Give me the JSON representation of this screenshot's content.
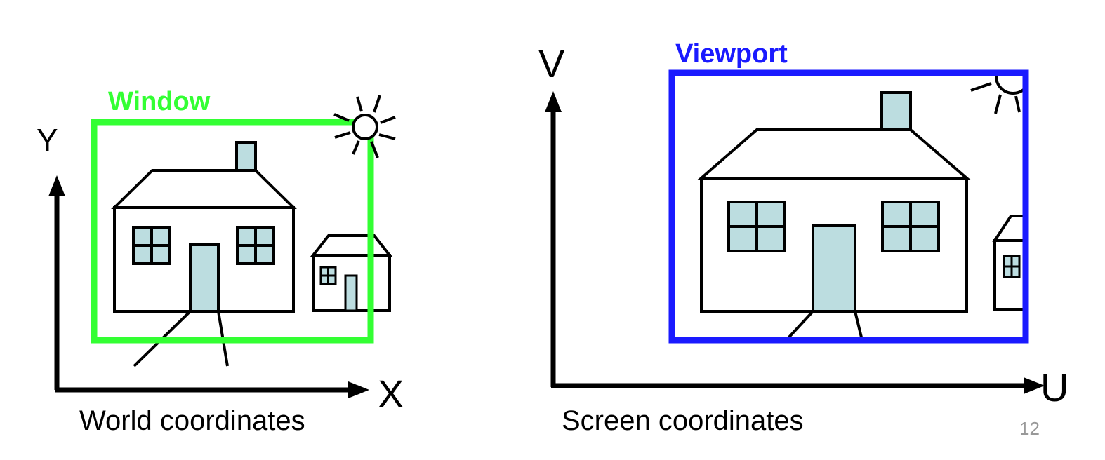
{
  "left_panel": {
    "window_label": "Window",
    "y_axis_label": "Y",
    "x_axis_label": "X",
    "caption": "World coordinates"
  },
  "right_panel": {
    "viewport_label": "Viewport",
    "v_axis_label": "V",
    "u_axis_label": "U",
    "caption": "Screen coordinates"
  },
  "page_number": "12",
  "colors": {
    "window_frame": "#33ff33",
    "viewport_frame": "#1a1aff",
    "fill_light_blue": "#bcdde0",
    "stroke": "#000000",
    "page_number": "#999999"
  }
}
